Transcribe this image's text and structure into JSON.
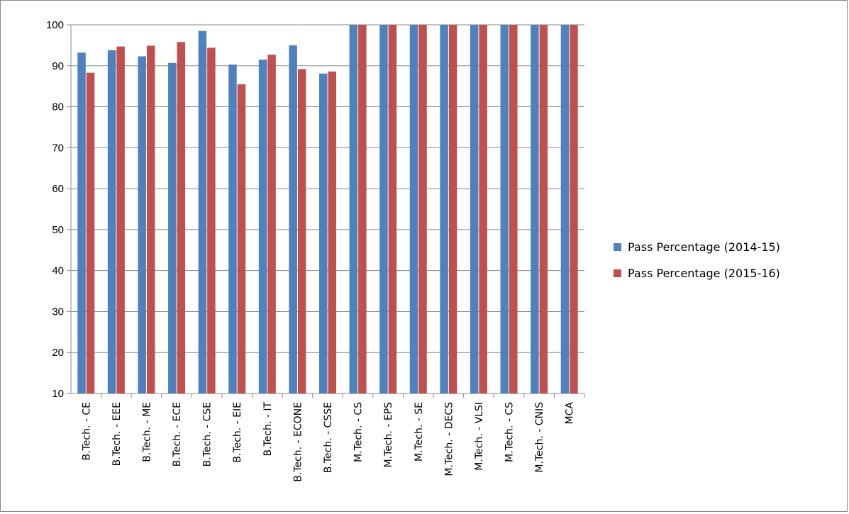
{
  "chart_data": {
    "type": "bar",
    "categories": [
      "B.Tech. - CE",
      "B.Tech. - EEE",
      "B.Tech. - ME",
      "B.Tech. - ECE",
      "B.Tech. - CSE",
      "B.Tech. - EIE",
      "B.Tech. - IT",
      "B.Tech. - ECONE",
      "B.Tech. - CSSE",
      "M.Tech. - CS",
      "M.Tech. - EPS",
      "M.Tech. - SE",
      "M.Tech. - DECS",
      "M.Tech. - VLSI",
      "M.Tech. - CS",
      "M.Tech. - CNIS",
      "MCA"
    ],
    "series": [
      {
        "name": "Pass Percentage (2014-15)",
        "color": "#4F81BD",
        "values": [
          93.2,
          93.8,
          92.3,
          90.7,
          98.5,
          90.3,
          91.5,
          95.0,
          88.1,
          100,
          100,
          100,
          100,
          100,
          100,
          100,
          100
        ]
      },
      {
        "name": "Pass Percentage (2015-16)",
        "color": "#C0504D",
        "values": [
          88.3,
          94.7,
          94.9,
          95.8,
          94.4,
          85.5,
          92.7,
          89.2,
          88.6,
          100,
          100,
          100,
          100,
          100,
          100,
          100,
          100
        ]
      }
    ],
    "title": "",
    "xlabel": "",
    "ylabel": "",
    "ylim": [
      10,
      100
    ],
    "yticks": [
      "10",
      "20",
      "30",
      "40",
      "50",
      "60",
      "70",
      "80",
      "90",
      "100"
    ],
    "grid": true,
    "legend_position": "right"
  }
}
